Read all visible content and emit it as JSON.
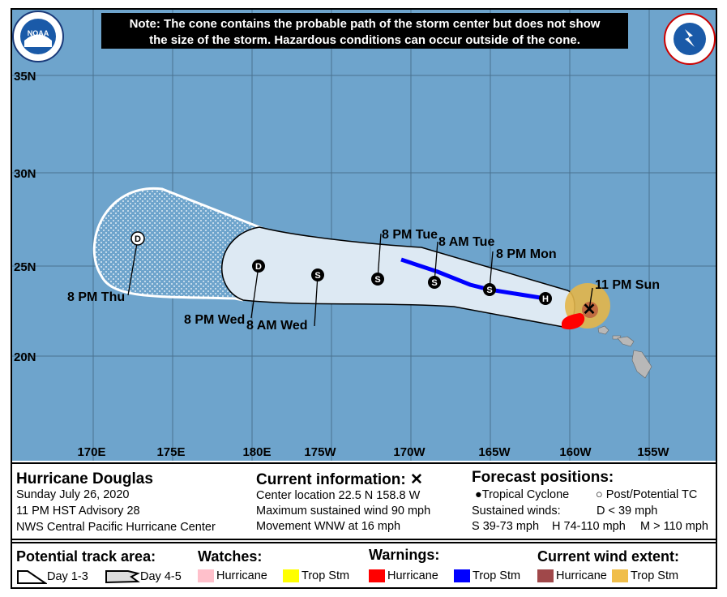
{
  "note": {
    "line1": "Note: The cone contains the probable path of the storm center but does not show",
    "line2": "the size of the storm. Hazardous conditions can occur outside of the cone."
  },
  "logos": {
    "left": "NOAA",
    "right": "NATIONAL WEATHER SERVICE"
  },
  "map": {
    "lat_labels": [
      "35N",
      "30N",
      "25N",
      "20N"
    ],
    "lon_labels": [
      "170E",
      "175E",
      "180E",
      "175W",
      "170W",
      "165W",
      "160W",
      "155W"
    ],
    "colors": {
      "ocean": "#6ea4cc",
      "cone": "#dde9f3",
      "land": "#b8b8b8",
      "track": "#0000ff",
      "warning_hurricane": "#ff0000",
      "wind_trop": "#e3b64a"
    },
    "forecast_points": [
      {
        "symbol": "H",
        "label": "11 PM Sun"
      },
      {
        "symbol": "H",
        "label": ""
      },
      {
        "symbol": "S",
        "label": "8 PM Mon"
      },
      {
        "symbol": "S",
        "label": "8 AM Tue"
      },
      {
        "symbol": "S",
        "label": "8 PM Tue"
      },
      {
        "symbol": "S",
        "label": "8 AM Wed"
      },
      {
        "symbol": "D",
        "label": "8 PM Wed"
      },
      {
        "symbol": "D",
        "label": "8 PM Thu"
      }
    ]
  },
  "info": {
    "storm_name": "Hurricane Douglas",
    "date": "Sunday July 26, 2020",
    "advisory": "11 PM HST Advisory 28",
    "center": "NWS Central Pacific Hurricane Center",
    "current_title": "Current information: ✕",
    "location": "Center location 22.5 N 158.8 W",
    "max_wind": "Maximum sustained wind 90 mph",
    "movement": "Movement WNW at 16 mph",
    "forecast_title": "Forecast positions:",
    "tc": "Tropical Cyclone",
    "ptc": "Post/Potential TC",
    "sustained": "Sustained winds:",
    "d": "D < 39 mph",
    "s": "S 39-73 mph",
    "hh": "H 74-110 mph",
    "m": "M > 110 mph"
  },
  "legend": {
    "track_title": "Potential track area:",
    "day13": "Day 1-3",
    "day45": "Day 4-5",
    "watches_title": "Watches:",
    "w_hur": "Hurricane",
    "w_ts": "Trop Stm",
    "warnings_title": "Warnings:",
    "wa_hur": "Hurricane",
    "wa_ts": "Trop Stm",
    "wind_title": "Current wind extent:",
    "c_hur": "Hurricane",
    "c_ts": "Trop Stm",
    "colors": {
      "watch_hur": "#ffc0cb",
      "watch_ts": "#ffff00",
      "warn_hur": "#ff0000",
      "warn_ts": "#0000ff",
      "wind_hur": "#a0484a",
      "wind_ts": "#f0be4a"
    }
  }
}
